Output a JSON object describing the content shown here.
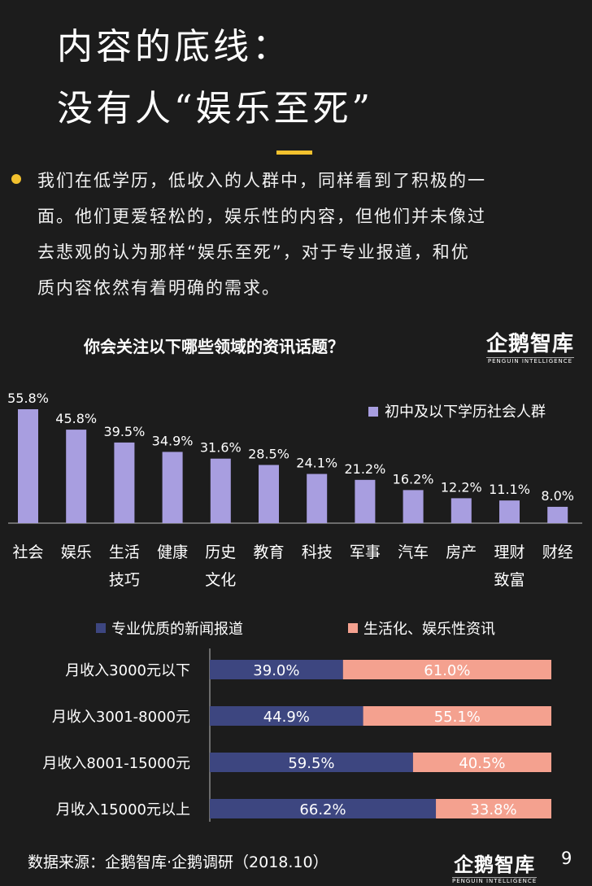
{
  "title": {
    "line1": "内容的底线：",
    "line2": "没有人“娱乐至死”"
  },
  "body": {
    "lines": [
      "我们在低学历，低收入的人群中，同样看到了积极的一",
      "面。他们更爱轻松的，娱乐性的内容，但他们并未像过",
      "去悲观的认为那样“娱乐至死”，对于专业报道，和优",
      "质内容依然有着明确的需求。"
    ]
  },
  "logo": {
    "name": "企鹅智库",
    "sub": "PENGUIN INTELLIGENCE"
  },
  "footer": {
    "source": "数据来源：企鹅智库·企鹅调研（2018.10）",
    "page": "9"
  },
  "colors": {
    "accent": "#f2c12e",
    "bar": "#a89ee0",
    "blue": "#3d4680",
    "salmon": "#f4a18f"
  },
  "chart_data": [
    {
      "type": "bar",
      "title": "你会关注以下哪些领域的资讯话题？",
      "legend": {
        "entries": [
          "初中及以下学历社会人群"
        ],
        "position": "top-right"
      },
      "series": [
        {
          "name": "初中及以下学历社会人群",
          "values": [
            55.8,
            45.8,
            39.5,
            34.9,
            31.6,
            28.5,
            24.1,
            21.2,
            16.2,
            12.2,
            11.1,
            8.0
          ]
        }
      ],
      "value_labels": [
        "55.8%",
        "45.8%",
        "39.5%",
        "34.9%",
        "31.6%",
        "28.5%",
        "24.1%",
        "21.2%",
        "16.2%",
        "12.2%",
        "11.1%",
        "8.0%"
      ],
      "categories": [
        [
          "社会"
        ],
        [
          "娱乐"
        ],
        [
          "生活",
          "技巧"
        ],
        [
          "健康"
        ],
        [
          "历史",
          "文化"
        ],
        [
          "教育"
        ],
        [
          "科技"
        ],
        [
          "军事"
        ],
        [
          "汽车"
        ],
        [
          "房产"
        ],
        [
          "理财",
          "致富"
        ],
        [
          "财经"
        ]
      ],
      "ylim": [
        0,
        60
      ]
    },
    {
      "type": "bar",
      "orientation": "horizontal",
      "stacked": true,
      "legend": {
        "entries": [
          "专业优质的新闻报道",
          "生活化、娱乐性资讯"
        ],
        "position": "top"
      },
      "categories": [
        "月收入3000元以下",
        "月收入3001-8000元",
        "月收入8001-15000元",
        "月收入15000元以上"
      ],
      "series": [
        {
          "name": "专业优质的新闻报道",
          "values": [
            39.0,
            44.9,
            59.5,
            66.2
          ],
          "labels": [
            "39.0%",
            "44.9%",
            "59.5%",
            "66.2%"
          ]
        },
        {
          "name": "生活化、娱乐性资讯",
          "values": [
            61.0,
            55.1,
            40.5,
            33.8
          ],
          "labels": [
            "61.0%",
            "55.1%",
            "40.5%",
            "33.8%"
          ]
        }
      ],
      "xlim": [
        0,
        100
      ]
    }
  ]
}
